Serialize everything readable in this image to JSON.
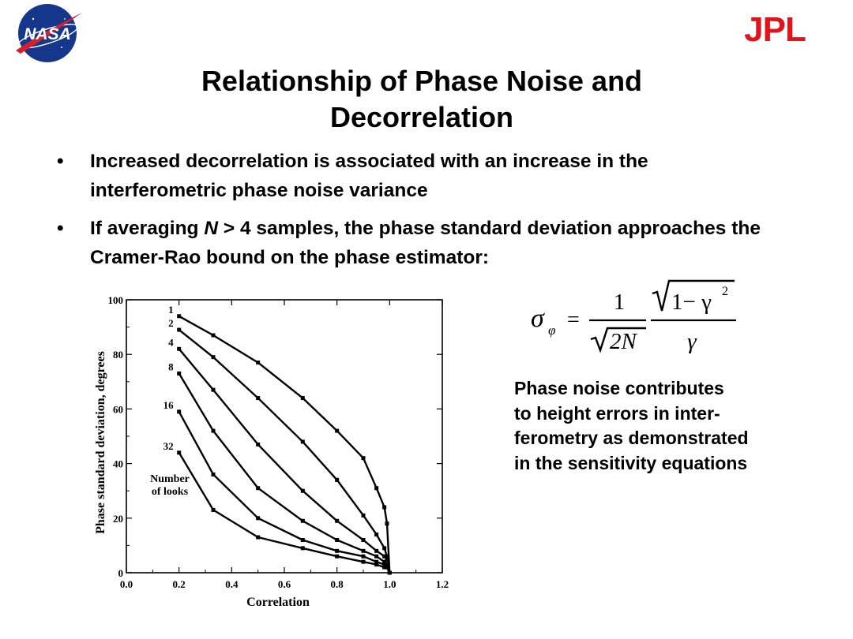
{
  "logos": {
    "left": "NASA",
    "right": "JPL"
  },
  "title": "Relationship of Phase Noise and\nDecorrelation",
  "bullets": [
    {
      "marker": "•",
      "text": "Increased decorrelation is associated with an increase in the interferometric phase noise variance"
    },
    {
      "marker": "•",
      "pre": "If averaging ",
      "var": "N",
      "post": " > 4 samples, the phase standard deviation approaches the Cramer-Rao bound on the phase estimator:"
    }
  ],
  "formula": {
    "lhs": "σ",
    "lhs_sub": "φ",
    "equals": "=",
    "num1": "1",
    "den1": "2N",
    "num2": "1− γ",
    "num2_sup": "2",
    "den2": "γ"
  },
  "note": "Phase noise contributes\nto height errors in inter-\nferometry as demonstrated\nin the sensitivity equations",
  "chart_data": {
    "type": "line",
    "xlabel": "Correlation",
    "ylabel": "Phase standard deviation, degrees",
    "xlim": [
      0,
      1.2
    ],
    "ylim": [
      0,
      100
    ],
    "xticks": [
      0.0,
      0.2,
      0.4,
      0.6,
      0.8,
      1.0,
      1.2
    ],
    "xtick_labels": [
      "0.0",
      "0.2",
      "0.4",
      "0.6",
      "0.8",
      "1.0",
      "1.2"
    ],
    "yticks": [
      0,
      20,
      40,
      60,
      80,
      100
    ],
    "ytick_labels": [
      "0",
      "20",
      "40",
      "60",
      "80",
      "100"
    ],
    "grid": false,
    "legend_title": "Number\nof looks",
    "series": [
      {
        "name": "1",
        "x": [
          0.2,
          0.33,
          0.5,
          0.67,
          0.8,
          0.9,
          0.95,
          0.98,
          0.99,
          1.0
        ],
        "y": [
          94,
          87,
          77,
          64,
          52,
          42,
          31,
          24,
          18,
          0
        ]
      },
      {
        "name": "2",
        "x": [
          0.2,
          0.33,
          0.5,
          0.67,
          0.8,
          0.9,
          0.95,
          0.98,
          0.99,
          1.0
        ],
        "y": [
          89,
          79,
          64,
          48,
          34,
          21,
          14,
          9,
          6,
          0
        ]
      },
      {
        "name": "4",
        "x": [
          0.2,
          0.33,
          0.5,
          0.67,
          0.8,
          0.9,
          0.95,
          0.98,
          0.99,
          1.0
        ],
        "y": [
          82,
          67,
          47,
          30,
          19,
          12,
          8,
          6,
          5,
          0
        ]
      },
      {
        "name": "8",
        "x": [
          0.2,
          0.33,
          0.5,
          0.67,
          0.8,
          0.9,
          0.95,
          0.98,
          0.99,
          1.0
        ],
        "y": [
          73,
          52,
          31,
          19,
          12,
          8,
          6,
          4,
          3,
          0
        ]
      },
      {
        "name": "16",
        "x": [
          0.2,
          0.33,
          0.5,
          0.67,
          0.8,
          0.9,
          0.95,
          0.98,
          0.99,
          1.0
        ],
        "y": [
          59,
          36,
          20,
          12,
          8,
          6,
          4,
          3,
          2,
          0
        ]
      },
      {
        "name": "32",
        "x": [
          0.2,
          0.33,
          0.5,
          0.67,
          0.8,
          0.9,
          0.95,
          0.98,
          0.99,
          1.0
        ],
        "y": [
          44,
          23,
          13,
          9,
          6,
          4,
          3,
          2,
          2,
          0
        ]
      }
    ]
  },
  "colors": {
    "jpl_red": "#e0151b",
    "nasa_blue": "#14378c",
    "nasa_red": "#d2202f"
  }
}
